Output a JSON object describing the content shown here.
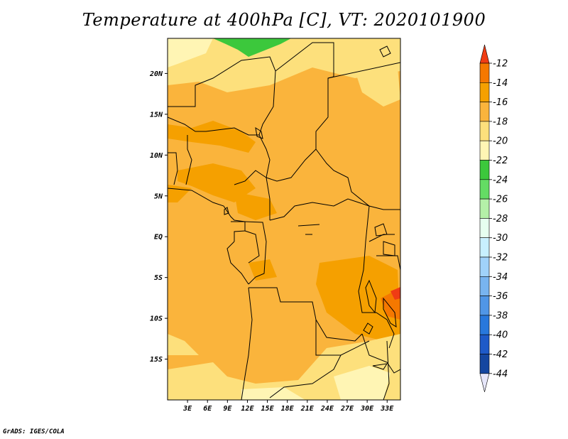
{
  "title": "Temperature at 400hPa [C], VT: 2020101900",
  "footer": "GrADS: IGES/COLA",
  "axes": {
    "lat_labels": [
      "20N",
      "15N",
      "10N",
      "5N",
      "EQ",
      "5S",
      "10S",
      "15S"
    ],
    "lat_values": [
      20,
      15,
      10,
      5,
      0,
      -5,
      -10,
      -15
    ],
    "lon_labels": [
      "3E",
      "6E",
      "9E",
      "12E",
      "15E",
      "18E",
      "21E",
      "24E",
      "27E",
      "30E",
      "33E"
    ],
    "lon_values": [
      3,
      6,
      9,
      12,
      15,
      18,
      21,
      24,
      27,
      30,
      33
    ]
  },
  "colorbar": {
    "labels": [
      "-12",
      "-14",
      "-16",
      "-18",
      "-20",
      "-22",
      "-24",
      "-26",
      "-28",
      "-30",
      "-32",
      "-34",
      "-36",
      "-38",
      "-40",
      "-42",
      "-44"
    ],
    "colors": [
      "#f03c14",
      "#f57800",
      "#f5a000",
      "#fab43c",
      "#fde07c",
      "#fff5b4",
      "#3cc83c",
      "#64dc64",
      "#b4f0a8",
      "#e6fff0",
      "#c8f0ff",
      "#a0d2fa",
      "#78b4f0",
      "#5096e6",
      "#2878dc",
      "#1e5ac8",
      "#1446a0",
      "#0a1e78"
    ],
    "top_arrow_color": "#f03c14",
    "bottom_arrow_color": "#e6e6fa"
  }
}
